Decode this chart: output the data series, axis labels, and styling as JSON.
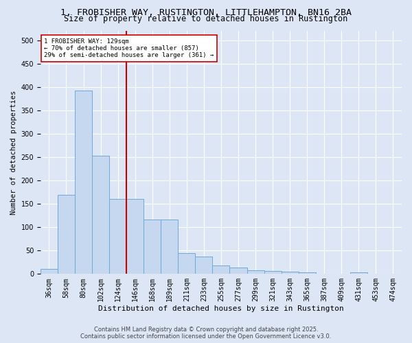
{
  "title_line1": "1, FROBISHER WAY, RUSTINGTON, LITTLEHAMPTON, BN16 2BA",
  "title_line2": "Size of property relative to detached houses in Rustington",
  "xlabel": "Distribution of detached houses by size in Rustington",
  "ylabel": "Number of detached properties",
  "categories": [
    "36sqm",
    "58sqm",
    "80sqm",
    "102sqm",
    "124sqm",
    "146sqm",
    "168sqm",
    "189sqm",
    "211sqm",
    "233sqm",
    "255sqm",
    "277sqm",
    "299sqm",
    "321sqm",
    "343sqm",
    "365sqm",
    "387sqm",
    "409sqm",
    "431sqm",
    "453sqm",
    "474sqm"
  ],
  "values": [
    11,
    169,
    393,
    253,
    161,
    161,
    116,
    116,
    44,
    37,
    18,
    13,
    8,
    6,
    5,
    4,
    1,
    0,
    3,
    1,
    1
  ],
  "bar_fill_color": "#c5d8f0",
  "bar_edge_color": "#6fa8d6",
  "vline_color": "#cc0000",
  "vline_x_index": 4,
  "annotation_text": "1 FROBISHER WAY: 129sqm\n← 70% of detached houses are smaller (857)\n29% of semi-detached houses are larger (361) →",
  "annotation_box_color": "#ffffff",
  "annotation_box_edge_color": "#cc0000",
  "background_color": "#dce6f5",
  "plot_bg_color": "#dce6f5",
  "grid_color": "#ffffff",
  "footer_text": "Contains HM Land Registry data © Crown copyright and database right 2025.\nContains public sector information licensed under the Open Government Licence v3.0.",
  "ylim": [
    0,
    520
  ],
  "yticks": [
    0,
    50,
    100,
    150,
    200,
    250,
    300,
    350,
    400,
    450,
    500
  ],
  "title_fontsize": 9.5,
  "subtitle_fontsize": 8.5,
  "axis_label_fontsize": 7.5,
  "tick_fontsize": 7,
  "footer_fontsize": 6
}
